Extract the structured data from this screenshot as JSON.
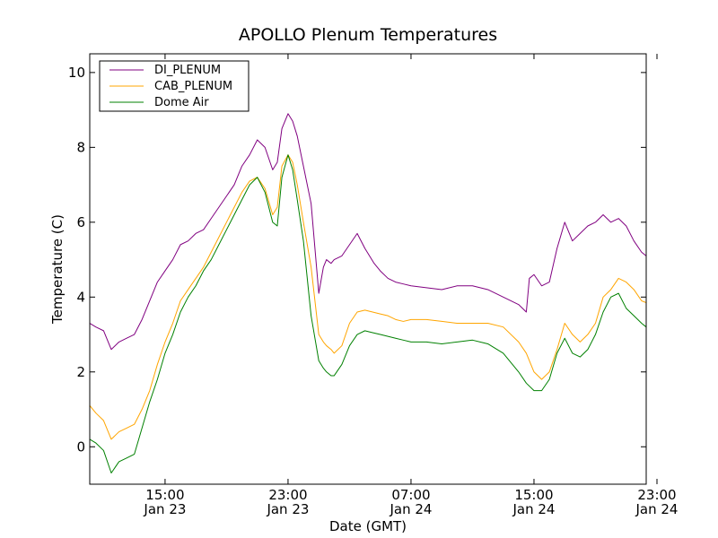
{
  "chart_data": {
    "type": "line",
    "title": "APOLLO Plenum Temperatures",
    "xlabel": "Date (GMT)",
    "ylabel": "Temperature (C)",
    "xlim": [
      10.1,
      46.3
    ],
    "ylim": [
      -1,
      10.5
    ],
    "x_unit": "hours since 2011-01-23 00:00 GMT",
    "grid": false,
    "legend_position": "upper-left",
    "x_ticks": [
      {
        "value": 15,
        "label_time": "15:00",
        "label_date": "Jan 23"
      },
      {
        "value": 23,
        "label_time": "23:00",
        "label_date": "Jan 23"
      },
      {
        "value": 31,
        "label_time": "07:00",
        "label_date": "Jan 24"
      },
      {
        "value": 39,
        "label_time": "15:00",
        "label_date": "Jan 24"
      },
      {
        "value": 47,
        "label_time": "23:00",
        "label_date": "Jan 24"
      }
    ],
    "y_ticks": [
      {
        "value": 0,
        "label": "0"
      },
      {
        "value": 2,
        "label": "2"
      },
      {
        "value": 4,
        "label": "4"
      },
      {
        "value": 6,
        "label": "6"
      },
      {
        "value": 8,
        "label": "8"
      },
      {
        "value": 10,
        "label": "10"
      }
    ],
    "series": [
      {
        "name": "DI_PLENUM",
        "color": "#800080",
        "x": [
          10.1,
          10.5,
          11.0,
          11.5,
          12.0,
          12.5,
          13.0,
          13.5,
          14.0,
          14.5,
          15.0,
          15.5,
          16.0,
          16.5,
          17.0,
          17.5,
          18.0,
          18.5,
          19.0,
          19.5,
          20.0,
          20.5,
          21.0,
          21.5,
          22.0,
          22.3,
          22.6,
          23.0,
          23.3,
          23.6,
          24.0,
          24.5,
          25.0,
          25.3,
          25.5,
          25.8,
          26.0,
          26.5,
          27.0,
          27.5,
          28.0,
          28.3,
          28.6,
          29.0,
          29.5,
          30.0,
          30.5,
          31.0,
          32.0,
          33.0,
          34.0,
          35.0,
          36.0,
          37.0,
          38.0,
          38.5,
          38.7,
          39.0,
          39.5,
          40.0,
          40.5,
          41.0,
          41.5,
          42.0,
          42.5,
          43.0,
          43.5,
          44.0,
          44.5,
          45.0,
          45.5,
          46.0,
          46.3
        ],
        "y": [
          3.3,
          3.2,
          3.1,
          2.6,
          2.8,
          2.9,
          3.0,
          3.4,
          3.9,
          4.4,
          4.7,
          5.0,
          5.4,
          5.5,
          5.7,
          5.8,
          6.1,
          6.4,
          6.7,
          7.0,
          7.5,
          7.8,
          8.2,
          8.0,
          7.4,
          7.6,
          8.5,
          8.9,
          8.7,
          8.3,
          7.5,
          6.5,
          4.1,
          4.8,
          5.0,
          4.9,
          5.0,
          5.1,
          5.4,
          5.7,
          5.3,
          5.1,
          4.9,
          4.7,
          4.5,
          4.4,
          4.35,
          4.3,
          4.25,
          4.2,
          4.3,
          4.3,
          4.2,
          4.0,
          3.8,
          3.6,
          4.5,
          4.6,
          4.3,
          4.4,
          5.3,
          6.0,
          5.5,
          5.7,
          5.9,
          6.0,
          6.2,
          6.0,
          6.1,
          5.9,
          5.5,
          5.2,
          5.1
        ]
      },
      {
        "name": "CAB_PLENUM",
        "color": "#ffa500",
        "x": [
          10.1,
          10.5,
          11.0,
          11.5,
          12.0,
          12.5,
          13.0,
          13.5,
          14.0,
          14.5,
          15.0,
          15.5,
          16.0,
          16.5,
          17.0,
          17.5,
          18.0,
          18.5,
          19.0,
          19.5,
          20.0,
          20.5,
          21.0,
          21.5,
          22.0,
          22.3,
          22.6,
          23.0,
          23.3,
          23.6,
          24.0,
          24.5,
          25.0,
          25.3,
          25.5,
          25.8,
          26.0,
          26.5,
          27.0,
          27.5,
          28.0,
          28.5,
          29.0,
          29.5,
          30.0,
          30.5,
          31.0,
          32.0,
          33.0,
          34.0,
          35.0,
          36.0,
          37.0,
          38.0,
          38.5,
          39.0,
          39.5,
          40.0,
          40.5,
          41.0,
          41.5,
          42.0,
          42.5,
          43.0,
          43.5,
          44.0,
          44.5,
          45.0,
          45.5,
          46.0,
          46.3
        ],
        "y": [
          1.1,
          0.9,
          0.7,
          0.2,
          0.4,
          0.5,
          0.6,
          1.0,
          1.5,
          2.2,
          2.8,
          3.3,
          3.9,
          4.2,
          4.5,
          4.8,
          5.2,
          5.6,
          6.0,
          6.4,
          6.8,
          7.1,
          7.2,
          6.9,
          6.2,
          6.4,
          7.5,
          7.8,
          7.6,
          7.0,
          6.0,
          4.8,
          3.0,
          2.8,
          2.7,
          2.6,
          2.5,
          2.7,
          3.3,
          3.6,
          3.65,
          3.6,
          3.55,
          3.5,
          3.4,
          3.35,
          3.4,
          3.4,
          3.35,
          3.3,
          3.3,
          3.3,
          3.2,
          2.8,
          2.5,
          2.0,
          1.8,
          2.0,
          2.6,
          3.3,
          3.0,
          2.8,
          3.0,
          3.3,
          4.0,
          4.2,
          4.5,
          4.4,
          4.2,
          3.9,
          3.85
        ]
      },
      {
        "name": "Dome Air",
        "color": "#008000",
        "x": [
          10.1,
          10.5,
          11.0,
          11.5,
          12.0,
          12.5,
          13.0,
          13.5,
          14.0,
          14.5,
          15.0,
          15.5,
          16.0,
          16.5,
          17.0,
          17.5,
          18.0,
          18.5,
          19.0,
          19.5,
          20.0,
          20.5,
          21.0,
          21.5,
          22.0,
          22.3,
          22.6,
          23.0,
          23.3,
          23.6,
          24.0,
          24.5,
          25.0,
          25.3,
          25.5,
          25.8,
          26.0,
          26.5,
          27.0,
          27.5,
          28.0,
          28.5,
          29.0,
          29.5,
          30.0,
          30.5,
          31.0,
          32.0,
          33.0,
          34.0,
          35.0,
          36.0,
          37.0,
          38.0,
          38.5,
          39.0,
          39.5,
          40.0,
          40.5,
          41.0,
          41.5,
          42.0,
          42.5,
          43.0,
          43.5,
          44.0,
          44.5,
          45.0,
          45.5,
          46.0,
          46.3
        ],
        "y": [
          0.2,
          0.1,
          -0.1,
          -0.7,
          -0.4,
          -0.3,
          -0.2,
          0.5,
          1.2,
          1.8,
          2.5,
          3.0,
          3.6,
          4.0,
          4.3,
          4.7,
          5.0,
          5.4,
          5.8,
          6.2,
          6.6,
          7.0,
          7.2,
          6.8,
          6.0,
          5.9,
          7.2,
          7.8,
          7.4,
          6.6,
          5.5,
          3.5,
          2.3,
          2.1,
          2.0,
          1.9,
          1.9,
          2.2,
          2.7,
          3.0,
          3.1,
          3.05,
          3.0,
          2.95,
          2.9,
          2.85,
          2.8,
          2.8,
          2.75,
          2.8,
          2.85,
          2.75,
          2.5,
          2.0,
          1.7,
          1.5,
          1.5,
          1.8,
          2.5,
          2.9,
          2.5,
          2.4,
          2.6,
          3.0,
          3.6,
          4.0,
          4.1,
          3.7,
          3.5,
          3.3,
          3.2
        ]
      }
    ]
  }
}
